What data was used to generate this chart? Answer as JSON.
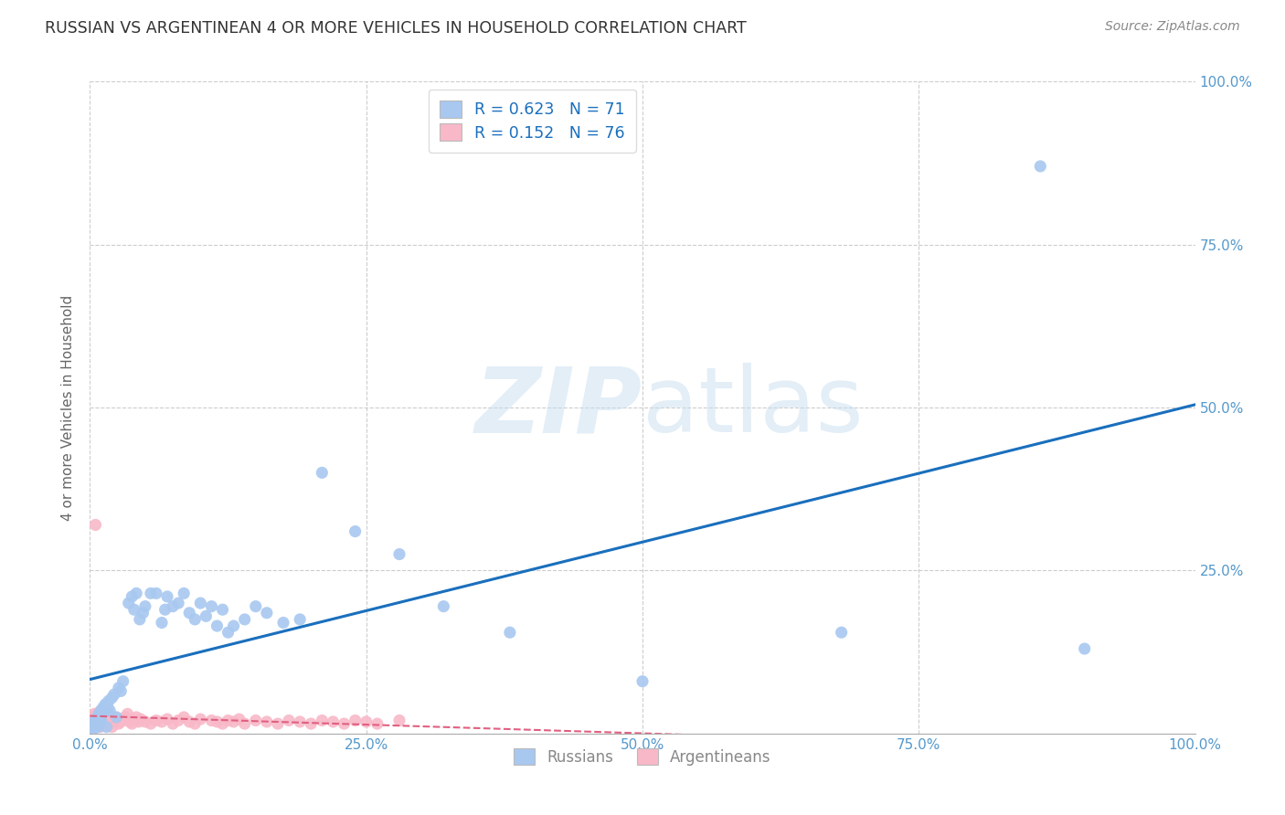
{
  "title": "RUSSIAN VS ARGENTINEAN 4 OR MORE VEHICLES IN HOUSEHOLD CORRELATION CHART",
  "source": "Source: ZipAtlas.com",
  "ylabel": "4 or more Vehicles in Household",
  "watermark": "ZIPatlas",
  "xlim": [
    0,
    1.0
  ],
  "ylim": [
    0,
    1.0
  ],
  "xticks": [
    0.0,
    0.25,
    0.5,
    0.75,
    1.0
  ],
  "yticks": [
    0.0,
    0.25,
    0.5,
    0.75,
    1.0
  ],
  "xticklabels": [
    "0.0%",
    "25.0%",
    "50.0%",
    "75.0%",
    "100.0%"
  ],
  "yticklabels_left": [
    "",
    "",
    "",
    "",
    ""
  ],
  "yticklabels_right": [
    "",
    "25.0%",
    "50.0%",
    "75.0%",
    "100.0%"
  ],
  "russian_R": 0.623,
  "russian_N": 71,
  "argentinean_R": 0.152,
  "argentinean_N": 76,
  "russian_color": "#a8c8f0",
  "argentinean_color": "#f8b8c8",
  "russian_line_color": "#1a6fbd",
  "argentinean_line_color": "#e06080",
  "background_color": "#ffffff",
  "grid_color": "#cccccc",
  "title_color": "#333333",
  "tick_color": "#5599cc",
  "legend_color": "#1a6fbd",
  "legend_N_color": "#cc2222",
  "russians_x": [
    0.001,
    0.002,
    0.002,
    0.003,
    0.003,
    0.004,
    0.004,
    0.005,
    0.005,
    0.006,
    0.006,
    0.007,
    0.007,
    0.008,
    0.008,
    0.009,
    0.009,
    0.01,
    0.01,
    0.011,
    0.012,
    0.013,
    0.014,
    0.015,
    0.016,
    0.017,
    0.018,
    0.02,
    0.022,
    0.024,
    0.026,
    0.028,
    0.03,
    0.035,
    0.038,
    0.04,
    0.042,
    0.045,
    0.048,
    0.05,
    0.055,
    0.06,
    0.065,
    0.068,
    0.07,
    0.075,
    0.08,
    0.085,
    0.09,
    0.095,
    0.1,
    0.105,
    0.11,
    0.115,
    0.12,
    0.125,
    0.13,
    0.14,
    0.15,
    0.16,
    0.175,
    0.19,
    0.21,
    0.24,
    0.28,
    0.32,
    0.38,
    0.5,
    0.68,
    0.86,
    0.9
  ],
  "russians_y": [
    0.005,
    0.008,
    0.012,
    0.01,
    0.015,
    0.008,
    0.018,
    0.012,
    0.02,
    0.01,
    0.015,
    0.025,
    0.01,
    0.02,
    0.03,
    0.015,
    0.025,
    0.02,
    0.035,
    0.03,
    0.04,
    0.035,
    0.045,
    0.01,
    0.04,
    0.05,
    0.035,
    0.055,
    0.06,
    0.025,
    0.07,
    0.065,
    0.08,
    0.2,
    0.21,
    0.19,
    0.215,
    0.175,
    0.185,
    0.195,
    0.215,
    0.215,
    0.17,
    0.19,
    0.21,
    0.195,
    0.2,
    0.215,
    0.185,
    0.175,
    0.2,
    0.18,
    0.195,
    0.165,
    0.19,
    0.155,
    0.165,
    0.175,
    0.195,
    0.185,
    0.17,
    0.175,
    0.4,
    0.31,
    0.275,
    0.195,
    0.155,
    0.08,
    0.155,
    0.87,
    0.13
  ],
  "argentineans_x": [
    0.001,
    0.001,
    0.002,
    0.002,
    0.003,
    0.003,
    0.004,
    0.004,
    0.005,
    0.005,
    0.006,
    0.006,
    0.007,
    0.007,
    0.008,
    0.008,
    0.009,
    0.009,
    0.01,
    0.01,
    0.011,
    0.011,
    0.012,
    0.013,
    0.014,
    0.015,
    0.016,
    0.017,
    0.018,
    0.019,
    0.02,
    0.022,
    0.024,
    0.026,
    0.028,
    0.03,
    0.032,
    0.034,
    0.036,
    0.038,
    0.04,
    0.042,
    0.044,
    0.046,
    0.05,
    0.055,
    0.06,
    0.065,
    0.07,
    0.075,
    0.08,
    0.085,
    0.09,
    0.095,
    0.1,
    0.11,
    0.115,
    0.12,
    0.125,
    0.13,
    0.135,
    0.14,
    0.15,
    0.16,
    0.17,
    0.18,
    0.19,
    0.2,
    0.21,
    0.22,
    0.23,
    0.24,
    0.25,
    0.26,
    0.28,
    0.005
  ],
  "argentineans_y": [
    0.01,
    0.015,
    0.008,
    0.02,
    0.012,
    0.025,
    0.018,
    0.03,
    0.015,
    0.022,
    0.028,
    0.01,
    0.018,
    0.025,
    0.015,
    0.032,
    0.02,
    0.01,
    0.028,
    0.035,
    0.015,
    0.022,
    0.03,
    0.025,
    0.018,
    0.012,
    0.02,
    0.028,
    0.015,
    0.022,
    0.01,
    0.025,
    0.02,
    0.015,
    0.018,
    0.022,
    0.025,
    0.03,
    0.018,
    0.015,
    0.02,
    0.025,
    0.018,
    0.022,
    0.018,
    0.015,
    0.02,
    0.018,
    0.022,
    0.015,
    0.02,
    0.025,
    0.018,
    0.015,
    0.022,
    0.02,
    0.018,
    0.015,
    0.02,
    0.018,
    0.022,
    0.015,
    0.02,
    0.018,
    0.015,
    0.02,
    0.018,
    0.015,
    0.02,
    0.018,
    0.015,
    0.02,
    0.018,
    0.015,
    0.02,
    0.32
  ]
}
